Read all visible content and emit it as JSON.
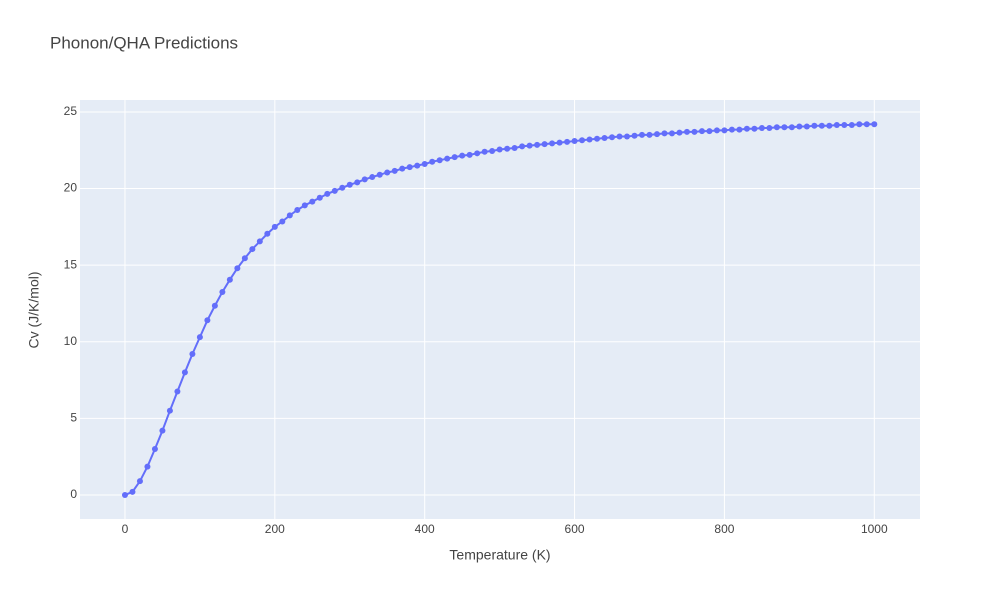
{
  "chart_data": {
    "type": "line",
    "title": "Phonon/QHA Predictions",
    "x_label": "Temperature (K)",
    "y_label": "Cv (J/K/mol)",
    "x": [
      0,
      10,
      20,
      30,
      40,
      50,
      60,
      70,
      80,
      90,
      100,
      110,
      120,
      130,
      140,
      150,
      160,
      170,
      180,
      190,
      200,
      210,
      220,
      230,
      240,
      250,
      260,
      270,
      280,
      290,
      300,
      310,
      320,
      330,
      340,
      350,
      360,
      370,
      380,
      390,
      400,
      410,
      420,
      430,
      440,
      450,
      460,
      470,
      480,
      490,
      500,
      510,
      520,
      530,
      540,
      550,
      560,
      570,
      580,
      590,
      600,
      610,
      620,
      630,
      640,
      650,
      660,
      670,
      680,
      690,
      700,
      710,
      720,
      730,
      740,
      750,
      760,
      770,
      780,
      790,
      800,
      810,
      820,
      830,
      840,
      850,
      860,
      870,
      880,
      890,
      900,
      910,
      920,
      930,
      940,
      950,
      960,
      970,
      980,
      990,
      1000
    ],
    "values": [
      0,
      0.2,
      0.9,
      1.85,
      3.0,
      4.2,
      5.5,
      6.75,
      8.0,
      9.2,
      10.3,
      11.4,
      12.35,
      13.25,
      14.05,
      14.8,
      15.45,
      16.05,
      16.55,
      17.05,
      17.5,
      17.85,
      18.25,
      18.6,
      18.9,
      19.15,
      19.4,
      19.65,
      19.85,
      20.05,
      20.25,
      20.4,
      20.6,
      20.75,
      20.9,
      21.05,
      21.15,
      21.3,
      21.4,
      21.5,
      21.6,
      21.75,
      21.85,
      21.95,
      22.05,
      22.15,
      22.2,
      22.3,
      22.4,
      22.45,
      22.55,
      22.6,
      22.65,
      22.75,
      22.8,
      22.85,
      22.9,
      22.95,
      23.0,
      23.05,
      23.1,
      23.15,
      23.2,
      23.25,
      23.3,
      23.35,
      23.4,
      23.4,
      23.45,
      23.5,
      23.5,
      23.55,
      23.6,
      23.6,
      23.65,
      23.7,
      23.7,
      23.75,
      23.75,
      23.8,
      23.8,
      23.85,
      23.85,
      23.9,
      23.9,
      23.95,
      23.95,
      24.0,
      24.0,
      24.0,
      24.05,
      24.05,
      24.1,
      24.1,
      24.1,
      24.15,
      24.15,
      24.15,
      24.2,
      24.2,
      24.2
    ],
    "color": "#636efa",
    "markers": true,
    "xlim": [
      -60,
      1061
    ],
    "xticks": [
      0,
      200,
      400,
      600,
      800,
      1000
    ],
    "ylim": [
      -1.57,
      25.78
    ],
    "yticks": [
      0,
      5,
      10,
      15,
      20,
      25
    ],
    "grid": true
  }
}
